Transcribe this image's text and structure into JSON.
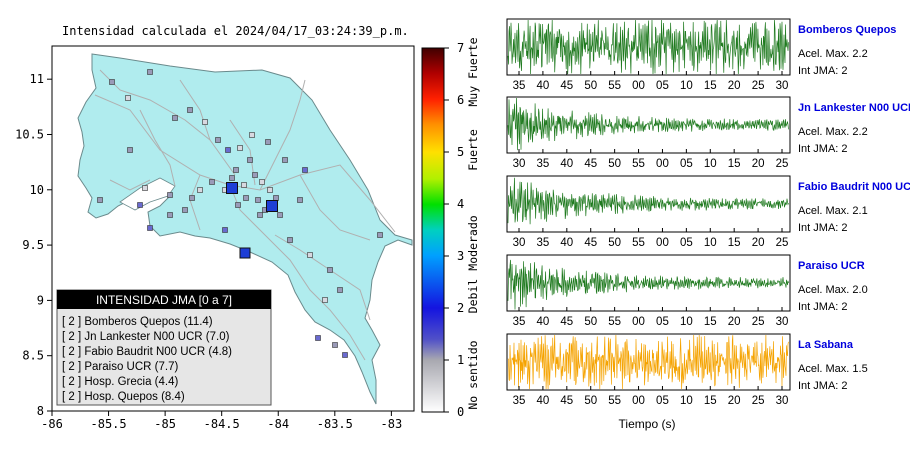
{
  "title": "Intensidad calculada el 2024/04/17_03:24:39_p.m.",
  "colors": {
    "land": "#b0ecee",
    "roads": "#b0b0b0",
    "stations_blue": "#1e3ed6",
    "legend_header": "#000000",
    "trace_green": "#1f7a1f",
    "trace_orange": "#f5a300",
    "station_name": "#0000dd"
  },
  "map": {
    "x_ticks": [
      "-86",
      "-85.5",
      "-85",
      "-84.5",
      "-84",
      "-83.5",
      "-83"
    ],
    "y_ticks": [
      "11",
      "10.5",
      "10",
      "9.5",
      "9",
      "8.5",
      "8"
    ],
    "xlim": [
      -86,
      -82.8
    ],
    "ylim": [
      8,
      11.3
    ]
  },
  "colorbar": {
    "ticks": [
      "0",
      "1",
      "2",
      "3",
      "4",
      "5",
      "6",
      "7"
    ],
    "labels": [
      "No sentido",
      "Debil",
      "Moderado",
      "Fuerte",
      "Muy Fuerte"
    ]
  },
  "legend": {
    "header": "INTENSIDAD JMA [0 a 7]",
    "items": [
      "[ 2 ]  Bomberos Quepos (11.4)",
      "[ 2 ]  Jn Lankester N00 UCR (7.0)",
      "[ 2 ]  Fabio Baudrit N00 UCR (4.8)",
      "[ 2 ]  Paraiso UCR (7.7)",
      "[ 2 ]  Hosp. Grecia (4.4)",
      "[ 2 ]  Hosp. Quepos (8.4)"
    ]
  },
  "waveforms": {
    "xlabel": "Tiempo (s)",
    "panels": [
      {
        "name": "Bomberos Quepos",
        "acel": "Acel. Max. 2.2",
        "int": "Int JMA: 2",
        "ticks": [
          "35",
          "40",
          "45",
          "50",
          "55",
          "00",
          "05",
          "10",
          "15",
          "20",
          "25",
          "30"
        ],
        "color": "green",
        "decay": 0
      },
      {
        "name": "Jn Lankester N00 UCR",
        "acel": "Acel. Max. 2.2",
        "int": "Int JMA: 2",
        "ticks": [
          "30",
          "35",
          "40",
          "45",
          "50",
          "55",
          "00",
          "05",
          "10",
          "15",
          "20",
          "25"
        ],
        "color": "green",
        "decay": 1
      },
      {
        "name": "Fabio Baudrit N00 UCR",
        "acel": "Acel. Max. 2.1",
        "int": "Int JMA: 2",
        "ticks": [
          "30",
          "35",
          "40",
          "45",
          "50",
          "55",
          "00",
          "05",
          "10",
          "15",
          "20",
          "25"
        ],
        "color": "green",
        "decay": 1
      },
      {
        "name": "Paraiso UCR",
        "acel": "Acel. Max. 2.0",
        "int": "Int JMA: 2",
        "ticks": [
          "35",
          "40",
          "45",
          "50",
          "55",
          "00",
          "05",
          "10",
          "15",
          "20",
          "25",
          "30"
        ],
        "color": "green",
        "decay": 1
      },
      {
        "name": "La Sabana",
        "acel": "Acel. Max. 1.5",
        "int": "Int JMA: 2",
        "ticks": [
          "35",
          "40",
          "45",
          "50",
          "55",
          "00",
          "05",
          "10",
          "15",
          "20",
          "25",
          "30"
        ],
        "color": "orange",
        "decay": 0
      }
    ]
  },
  "chart_data": [
    {
      "type": "scatter",
      "title": "Intensidad calculada el 2024/04/17_03:24:39_p.m.",
      "xlim": [
        -86,
        -82.8
      ],
      "ylim": [
        8,
        11.3
      ],
      "legend_title": "INTENSIDAD JMA [0 a 7]",
      "highlighted_stations": [
        {
          "name": "Bomberos Quepos",
          "intensity": 2,
          "pga": 11.4
        },
        {
          "name": "Jn Lankester N00 UCR",
          "intensity": 2,
          "pga": 7.0
        },
        {
          "name": "Fabio Baudrit N00 UCR",
          "intensity": 2,
          "pga": 4.8
        },
        {
          "name": "Paraiso UCR",
          "intensity": 2,
          "pga": 7.7
        },
        {
          "name": "Hosp. Grecia",
          "intensity": 2,
          "pga": 4.4
        },
        {
          "name": "Hosp. Quepos",
          "intensity": 2,
          "pga": 8.4
        }
      ],
      "colorbar_range": [
        0,
        7
      ]
    },
    {
      "type": "line",
      "xlabel": "Tiempo (s)",
      "series": [
        {
          "name": "Bomberos Quepos",
          "peak": 2.2,
          "intensity": 2
        },
        {
          "name": "Jn Lankester N00 UCR",
          "peak": 2.2,
          "intensity": 2
        },
        {
          "name": "Fabio Baudrit N00 UCR",
          "peak": 2.1,
          "intensity": 2
        },
        {
          "name": "Paraiso UCR",
          "peak": 2.0,
          "intensity": 2
        },
        {
          "name": "La Sabana",
          "peak": 1.5,
          "intensity": 2
        }
      ]
    }
  ]
}
